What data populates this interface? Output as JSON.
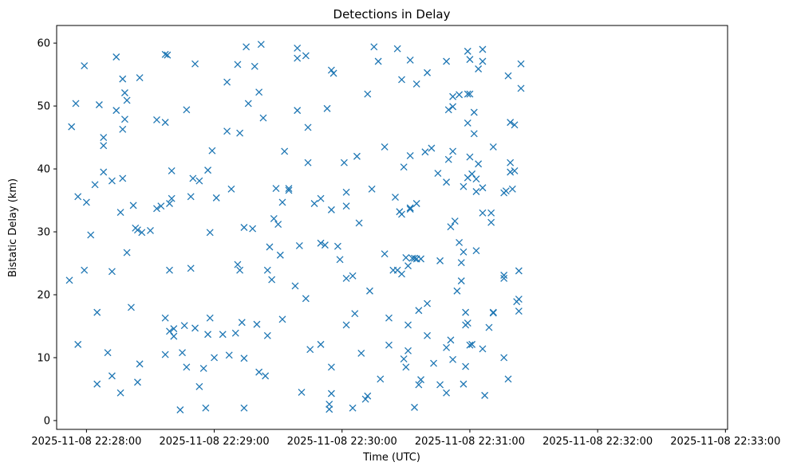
{
  "chart_data": {
    "type": "scatter",
    "title": "Detections in Delay",
    "xlabel": "Time (UTC)",
    "ylabel": "Bistatic Delay (km)",
    "marker": "x",
    "color": "#1f77b4",
    "grid": false,
    "x_range": [
      "2025-11-08 22:27:46",
      "2025-11-08 22:33:01"
    ],
    "ylim": [
      -1.4,
      62.8
    ],
    "x_ticks": [
      "2025-11-08 22:28:00",
      "2025-11-08 22:29:00",
      "2025-11-08 22:30:00",
      "2025-11-08 22:31:00",
      "2025-11-08 22:32:00",
      "2025-11-08 22:33:00"
    ],
    "y_ticks": [
      "0",
      "10",
      "20",
      "30",
      "40",
      "50",
      "60"
    ],
    "points": [
      [
        "2025-11-08 22:27:52",
        22.3
      ],
      [
        "2025-11-08 22:27:53",
        46.7
      ],
      [
        "2025-11-08 22:27:55",
        50.4
      ],
      [
        "2025-11-08 22:27:56",
        12.1
      ],
      [
        "2025-11-08 22:27:56",
        35.6
      ],
      [
        "2025-11-08 22:27:59",
        56.4
      ],
      [
        "2025-11-08 22:27:59",
        23.9
      ],
      [
        "2025-11-08 22:28:00",
        34.7
      ],
      [
        "2025-11-08 22:28:02",
        29.5
      ],
      [
        "2025-11-08 22:28:04",
        37.5
      ],
      [
        "2025-11-08 22:28:05",
        17.2
      ],
      [
        "2025-11-08 22:28:05",
        5.8
      ],
      [
        "2025-11-08 22:28:06",
        50.2
      ],
      [
        "2025-11-08 22:28:08",
        45.0
      ],
      [
        "2025-11-08 22:28:08",
        43.7
      ],
      [
        "2025-11-08 22:28:08",
        39.5
      ],
      [
        "2025-11-08 22:28:10",
        10.8
      ],
      [
        "2025-11-08 22:28:12",
        38.1
      ],
      [
        "2025-11-08 22:28:12",
        23.7
      ],
      [
        "2025-11-08 22:28:12",
        7.1
      ],
      [
        "2025-11-08 22:28:14",
        57.8
      ],
      [
        "2025-11-08 22:28:14",
        49.3
      ],
      [
        "2025-11-08 22:28:16",
        4.4
      ],
      [
        "2025-11-08 22:28:16",
        33.1
      ],
      [
        "2025-11-08 22:28:17",
        54.3
      ],
      [
        "2025-11-08 22:28:17",
        46.3
      ],
      [
        "2025-11-08 22:28:17",
        38.5
      ],
      [
        "2025-11-08 22:28:18",
        52.1
      ],
      [
        "2025-11-08 22:28:18",
        47.9
      ],
      [
        "2025-11-08 22:28:19",
        50.9
      ],
      [
        "2025-11-08 22:28:19",
        26.7
      ],
      [
        "2025-11-08 22:28:21",
        18.0
      ],
      [
        "2025-11-08 22:28:22",
        34.2
      ],
      [
        "2025-11-08 22:28:23",
        30.6
      ],
      [
        "2025-11-08 22:28:24",
        30.3
      ],
      [
        "2025-11-08 22:28:24",
        6.1
      ],
      [
        "2025-11-08 22:28:25",
        54.5
      ],
      [
        "2025-11-08 22:28:25",
        9.0
      ],
      [
        "2025-11-08 22:28:26",
        29.9
      ],
      [
        "2025-11-08 22:28:30",
        30.2
      ],
      [
        "2025-11-08 22:28:33",
        47.8
      ],
      [
        "2025-11-08 22:28:33",
        33.7
      ],
      [
        "2025-11-08 22:28:35",
        34.1
      ],
      [
        "2025-11-08 22:28:37",
        58.2
      ],
      [
        "2025-11-08 22:28:37",
        47.4
      ],
      [
        "2025-11-08 22:28:37",
        16.3
      ],
      [
        "2025-11-08 22:28:37",
        10.5
      ],
      [
        "2025-11-08 22:28:38",
        58.1
      ],
      [
        "2025-11-08 22:28:39",
        34.5
      ],
      [
        "2025-11-08 22:28:39",
        23.9
      ],
      [
        "2025-11-08 22:28:39",
        14.2
      ],
      [
        "2025-11-08 22:28:40",
        39.7
      ],
      [
        "2025-11-08 22:28:40",
        35.3
      ],
      [
        "2025-11-08 22:28:41",
        14.6
      ],
      [
        "2025-11-08 22:28:41",
        13.4
      ],
      [
        "2025-11-08 22:28:44",
        1.7
      ],
      [
        "2025-11-08 22:28:45",
        10.8
      ],
      [
        "2025-11-08 22:28:46",
        15.1
      ],
      [
        "2025-11-08 22:28:47",
        8.5
      ],
      [
        "2025-11-08 22:28:47",
        49.4
      ],
      [
        "2025-11-08 22:28:49",
        35.6
      ],
      [
        "2025-11-08 22:28:49",
        24.2
      ],
      [
        "2025-11-08 22:28:50",
        38.5
      ],
      [
        "2025-11-08 22:28:51",
        56.7
      ],
      [
        "2025-11-08 22:28:51",
        14.7
      ],
      [
        "2025-11-08 22:28:53",
        38.1
      ],
      [
        "2025-11-08 22:28:53",
        5.4
      ],
      [
        "2025-11-08 22:28:55",
        8.3
      ],
      [
        "2025-11-08 22:28:56",
        2.0
      ],
      [
        "2025-11-08 22:28:57",
        39.8
      ],
      [
        "2025-11-08 22:28:57",
        13.7
      ],
      [
        "2025-11-08 22:28:58",
        16.3
      ],
      [
        "2025-11-08 22:28:58",
        29.9
      ],
      [
        "2025-11-08 22:28:59",
        42.9
      ],
      [
        "2025-11-08 22:29:00",
        10.0
      ],
      [
        "2025-11-08 22:29:01",
        35.4
      ],
      [
        "2025-11-08 22:29:04",
        13.7
      ],
      [
        "2025-11-08 22:29:06",
        46.0
      ],
      [
        "2025-11-08 22:29:06",
        53.8
      ],
      [
        "2025-11-08 22:29:07",
        10.4
      ],
      [
        "2025-11-08 22:29:08",
        36.8
      ],
      [
        "2025-11-08 22:29:10",
        13.9
      ],
      [
        "2025-11-08 22:29:11",
        56.6
      ],
      [
        "2025-11-08 22:29:11",
        24.8
      ],
      [
        "2025-11-08 22:29:12",
        45.7
      ],
      [
        "2025-11-08 22:29:12",
        23.9
      ],
      [
        "2025-11-08 22:29:13",
        15.6
      ],
      [
        "2025-11-08 22:29:14",
        2.0
      ],
      [
        "2025-11-08 22:29:14",
        9.9
      ],
      [
        "2025-11-08 22:29:14",
        30.7
      ],
      [
        "2025-11-08 22:29:15",
        59.4
      ],
      [
        "2025-11-08 22:29:16",
        50.4
      ],
      [
        "2025-11-08 22:29:18",
        30.5
      ],
      [
        "2025-11-08 22:29:19",
        56.3
      ],
      [
        "2025-11-08 22:29:20",
        15.3
      ],
      [
        "2025-11-08 22:29:21",
        52.2
      ],
      [
        "2025-11-08 22:29:21",
        7.7
      ],
      [
        "2025-11-08 22:29:22",
        59.8
      ],
      [
        "2025-11-08 22:29:23",
        48.1
      ],
      [
        "2025-11-08 22:29:24",
        7.1
      ],
      [
        "2025-11-08 22:29:25",
        23.9
      ],
      [
        "2025-11-08 22:29:25",
        13.5
      ],
      [
        "2025-11-08 22:29:26",
        27.6
      ],
      [
        "2025-11-08 22:29:27",
        22.4
      ],
      [
        "2025-11-08 22:29:28",
        32.1
      ],
      [
        "2025-11-08 22:29:29",
        36.9
      ],
      [
        "2025-11-08 22:29:30",
        31.2
      ],
      [
        "2025-11-08 22:29:31",
        26.3
      ],
      [
        "2025-11-08 22:29:32",
        16.1
      ],
      [
        "2025-11-08 22:29:32",
        34.7
      ],
      [
        "2025-11-08 22:29:33",
        42.8
      ],
      [
        "2025-11-08 22:29:35",
        36.9
      ],
      [
        "2025-11-08 22:29:35",
        36.6
      ],
      [
        "2025-11-08 22:29:38",
        21.4
      ],
      [
        "2025-11-08 22:29:39",
        59.2
      ],
      [
        "2025-11-08 22:29:39",
        57.6
      ],
      [
        "2025-11-08 22:29:39",
        49.3
      ],
      [
        "2025-11-08 22:29:40",
        27.8
      ],
      [
        "2025-11-08 22:29:41",
        4.5
      ],
      [
        "2025-11-08 22:29:43",
        58.0
      ],
      [
        "2025-11-08 22:29:43",
        19.4
      ],
      [
        "2025-11-08 22:29:44",
        46.6
      ],
      [
        "2025-11-08 22:29:44",
        41.0
      ],
      [
        "2025-11-08 22:29:45",
        11.3
      ],
      [
        "2025-11-08 22:29:47",
        34.5
      ],
      [
        "2025-11-08 22:29:50",
        12.1
      ],
      [
        "2025-11-08 22:29:50",
        28.2
      ],
      [
        "2025-11-08 22:29:50",
        35.3
      ],
      [
        "2025-11-08 22:29:52",
        27.9
      ],
      [
        "2025-11-08 22:29:53",
        49.6
      ],
      [
        "2025-11-08 22:29:54",
        1.8
      ],
      [
        "2025-11-08 22:29:54",
        2.6
      ],
      [
        "2025-11-08 22:29:55",
        4.3
      ],
      [
        "2025-11-08 22:29:55",
        8.5
      ],
      [
        "2025-11-08 22:29:55",
        33.5
      ],
      [
        "2025-11-08 22:29:55",
        55.7
      ],
      [
        "2025-11-08 22:29:56",
        55.2
      ],
      [
        "2025-11-08 22:29:58",
        27.7
      ],
      [
        "2025-11-08 22:29:59",
        25.6
      ],
      [
        "2025-11-08 22:30:01",
        41.0
      ],
      [
        "2025-11-08 22:30:02",
        36.3
      ],
      [
        "2025-11-08 22:30:02",
        34.1
      ],
      [
        "2025-11-08 22:30:02",
        22.6
      ],
      [
        "2025-11-08 22:30:02",
        15.2
      ],
      [
        "2025-11-08 22:30:05",
        23.0
      ],
      [
        "2025-11-08 22:30:05",
        2.0
      ],
      [
        "2025-11-08 22:30:06",
        17.0
      ],
      [
        "2025-11-08 22:30:07",
        42.0
      ],
      [
        "2025-11-08 22:30:08",
        31.4
      ],
      [
        "2025-11-08 22:30:09",
        10.7
      ],
      [
        "2025-11-08 22:30:11",
        3.4
      ],
      [
        "2025-11-08 22:30:12",
        3.9
      ],
      [
        "2025-11-08 22:30:12",
        51.9
      ],
      [
        "2025-11-08 22:30:13",
        20.6
      ],
      [
        "2025-11-08 22:30:14",
        36.8
      ],
      [
        "2025-11-08 22:30:15",
        59.4
      ],
      [
        "2025-11-08 22:30:17",
        57.1
      ],
      [
        "2025-11-08 22:30:18",
        6.6
      ],
      [
        "2025-11-08 22:30:20",
        43.5
      ],
      [
        "2025-11-08 22:30:20",
        26.5
      ],
      [
        "2025-11-08 22:30:22",
        12.0
      ],
      [
        "2025-11-08 22:30:22",
        16.3
      ],
      [
        "2025-11-08 22:30:24",
        23.9
      ],
      [
        "2025-11-08 22:30:25",
        35.5
      ],
      [
        "2025-11-08 22:30:26",
        23.9
      ],
      [
        "2025-11-08 22:30:26",
        59.1
      ],
      [
        "2025-11-08 22:30:27",
        33.2
      ],
      [
        "2025-11-08 22:30:28",
        23.3
      ],
      [
        "2025-11-08 22:30:28",
        54.2
      ],
      [
        "2025-11-08 22:30:28",
        32.8
      ],
      [
        "2025-11-08 22:30:29",
        40.3
      ],
      [
        "2025-11-08 22:30:29",
        9.8
      ],
      [
        "2025-11-08 22:30:30",
        8.5
      ],
      [
        "2025-11-08 22:30:30",
        25.9
      ],
      [
        "2025-11-08 22:30:31",
        24.6
      ],
      [
        "2025-11-08 22:30:31",
        15.2
      ],
      [
        "2025-11-08 22:30:31",
        11.1
      ],
      [
        "2025-11-08 22:30:32",
        57.3
      ],
      [
        "2025-11-08 22:30:32",
        42.1
      ],
      [
        "2025-11-08 22:30:32",
        33.6
      ],
      [
        "2025-11-08 22:30:32",
        33.8
      ],
      [
        "2025-11-08 22:30:33",
        25.8
      ],
      [
        "2025-11-08 22:30:34",
        2.1
      ],
      [
        "2025-11-08 22:30:34",
        25.8
      ],
      [
        "2025-11-08 22:30:35",
        53.5
      ],
      [
        "2025-11-08 22:30:35",
        34.5
      ],
      [
        "2025-11-08 22:30:35",
        25.7
      ],
      [
        "2025-11-08 22:30:36",
        17.5
      ],
      [
        "2025-11-08 22:30:36",
        5.7
      ],
      [
        "2025-11-08 22:30:37",
        25.7
      ],
      [
        "2025-11-08 22:30:37",
        6.5
      ],
      [
        "2025-11-08 22:30:39",
        42.7
      ],
      [
        "2025-11-08 22:30:40",
        55.3
      ],
      [
        "2025-11-08 22:30:40",
        13.5
      ],
      [
        "2025-11-08 22:30:40",
        18.6
      ],
      [
        "2025-11-08 22:30:42",
        43.3
      ],
      [
        "2025-11-08 22:30:43",
        9.1
      ],
      [
        "2025-11-08 22:30:45",
        39.3
      ],
      [
        "2025-11-08 22:30:46",
        25.4
      ],
      [
        "2025-11-08 22:30:46",
        5.7
      ],
      [
        "2025-11-08 22:30:49",
        57.1
      ],
      [
        "2025-11-08 22:30:49",
        37.9
      ],
      [
        "2025-11-08 22:30:49",
        11.6
      ],
      [
        "2025-11-08 22:30:49",
        4.4
      ],
      [
        "2025-11-08 22:30:50",
        49.4
      ],
      [
        "2025-11-08 22:30:50",
        41.5
      ],
      [
        "2025-11-08 22:30:51",
        12.8
      ],
      [
        "2025-11-08 22:30:51",
        30.8
      ],
      [
        "2025-11-08 22:30:52",
        51.5
      ],
      [
        "2025-11-08 22:30:52",
        49.9
      ],
      [
        "2025-11-08 22:30:52",
        42.8
      ],
      [
        "2025-11-08 22:30:52",
        9.7
      ],
      [
        "2025-11-08 22:30:53",
        31.7
      ],
      [
        "2025-11-08 22:30:54",
        20.6
      ],
      [
        "2025-11-08 22:30:55",
        51.8
      ],
      [
        "2025-11-08 22:30:55",
        28.3
      ],
      [
        "2025-11-08 22:30:56",
        22.2
      ],
      [
        "2025-11-08 22:30:56",
        25.1
      ],
      [
        "2025-11-08 22:30:57",
        37.2
      ],
      [
        "2025-11-08 22:30:57",
        5.8
      ],
      [
        "2025-11-08 22:30:57",
        26.8
      ],
      [
        "2025-11-08 22:30:58",
        8.6
      ],
      [
        "2025-11-08 22:30:58",
        17.2
      ],
      [
        "2025-11-08 22:30:58",
        15.2
      ],
      [
        "2025-11-08 22:30:59",
        58.7
      ],
      [
        "2025-11-08 22:30:59",
        51.9
      ],
      [
        "2025-11-08 22:30:59",
        47.3
      ],
      [
        "2025-11-08 22:30:59",
        38.6
      ],
      [
        "2025-11-08 22:30:59",
        15.5
      ],
      [
        "2025-11-08 22:31:00",
        51.9
      ],
      [
        "2025-11-08 22:31:00",
        57.4
      ],
      [
        "2025-11-08 22:31:00",
        41.9
      ],
      [
        "2025-11-08 22:31:00",
        12.0
      ],
      [
        "2025-11-08 22:31:01",
        12.1
      ],
      [
        "2025-11-08 22:31:01",
        39.2
      ],
      [
        "2025-11-08 22:31:02",
        45.6
      ],
      [
        "2025-11-08 22:31:02",
        49.0
      ],
      [
        "2025-11-08 22:31:03",
        38.4
      ],
      [
        "2025-11-08 22:31:03",
        36.4
      ],
      [
        "2025-11-08 22:31:03",
        27.0
      ],
      [
        "2025-11-08 22:31:04",
        40.8
      ],
      [
        "2025-11-08 22:31:04",
        55.9
      ],
      [
        "2025-11-08 22:31:06",
        59.0
      ],
      [
        "2025-11-08 22:31:06",
        57.1
      ],
      [
        "2025-11-08 22:31:06",
        37.0
      ],
      [
        "2025-11-08 22:31:06",
        33.0
      ],
      [
        "2025-11-08 22:31:06",
        11.4
      ],
      [
        "2025-11-08 22:31:07",
        4.0
      ],
      [
        "2025-11-08 22:31:09",
        14.8
      ],
      [
        "2025-11-08 22:31:10",
        31.5
      ],
      [
        "2025-11-08 22:31:10",
        33.0
      ],
      [
        "2025-11-08 22:31:11",
        43.5
      ],
      [
        "2025-11-08 22:31:11",
        17.2
      ],
      [
        "2025-11-08 22:31:11",
        17.1
      ],
      [
        "2025-11-08 22:31:16",
        23.1
      ],
      [
        "2025-11-08 22:31:16",
        22.6
      ],
      [
        "2025-11-08 22:31:16",
        36.2
      ],
      [
        "2025-11-08 22:31:16",
        10.0
      ],
      [
        "2025-11-08 22:31:17",
        36.5
      ],
      [
        "2025-11-08 22:31:18",
        54.8
      ],
      [
        "2025-11-08 22:31:19",
        47.4
      ],
      [
        "2025-11-08 22:31:19",
        41.0
      ],
      [
        "2025-11-08 22:31:19",
        39.5
      ],
      [
        "2025-11-08 22:31:18",
        6.6
      ],
      [
        "2025-11-08 22:31:21",
        47.0
      ],
      [
        "2025-11-08 22:31:21",
        39.7
      ],
      [
        "2025-11-08 22:31:20",
        36.8
      ],
      [
        "2025-11-08 22:31:22",
        18.9
      ],
      [
        "2025-11-08 22:31:23",
        19.3
      ],
      [
        "2025-11-08 22:31:24",
        56.7
      ],
      [
        "2025-11-08 22:31:24",
        52.8
      ],
      [
        "2025-11-08 22:31:23",
        23.8
      ],
      [
        "2025-11-08 22:31:23",
        17.4
      ]
    ]
  }
}
